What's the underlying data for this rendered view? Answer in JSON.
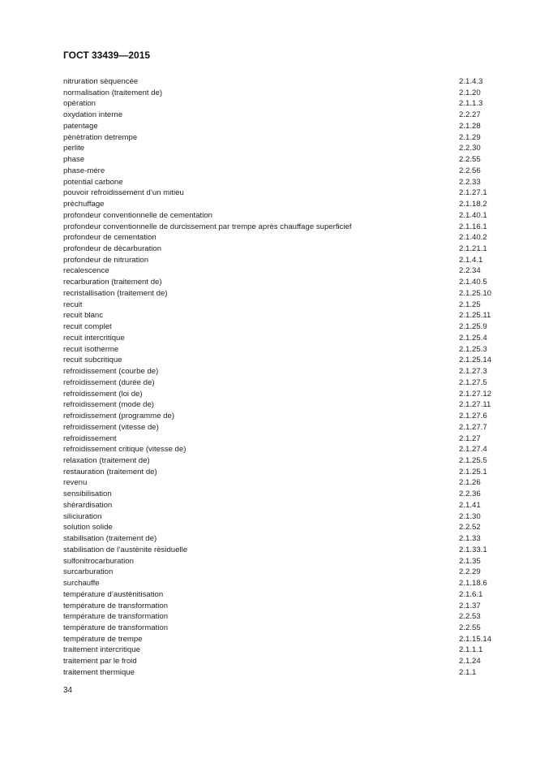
{
  "header": {
    "title": "ГОСТ 33439—2015"
  },
  "entries": [
    {
      "term": "nitruration sèquencèe",
      "ref": "2.1.4.3"
    },
    {
      "term": "normalisation (traitement de)",
      "ref": "2.1.20"
    },
    {
      "term": "opèration",
      "ref": "2.1.1.3"
    },
    {
      "term": "oxydation interne",
      "ref": "2.2.27"
    },
    {
      "term": "patentage",
      "ref": "2.1.28"
    },
    {
      "term": "pènètration detrempe",
      "ref": "2.1.29"
    },
    {
      "term": "perlite",
      "ref": "2.2.30"
    },
    {
      "term": "phase",
      "ref": "2.2.55"
    },
    {
      "term": "phase-mére",
      "ref": "2.2.56"
    },
    {
      "term": "potential carbone",
      "ref": "2.2.33"
    },
    {
      "term": "pouvoir refroidissement d’un mitieu",
      "ref": "2.1.27.1"
    },
    {
      "term": "prèchuffage",
      "ref": "2.1.18.2"
    },
    {
      "term": "profondeur conventionnelle de cementation",
      "ref": "2.1.40.1"
    },
    {
      "term": "profondeur conventionnelle de durcissement par trempe après chauffage superficief",
      "ref": "2.1.16.1"
    },
    {
      "term": "profondeur de cementation",
      "ref": "2.1.40.2"
    },
    {
      "term": "profondeur de dècarburation",
      "ref": "2.1.21.1"
    },
    {
      "term": "profondeur de nitruration",
      "ref": "2.1.4.1"
    },
    {
      "term": "recalescence",
      "ref": "2.2.34"
    },
    {
      "term": "recarburation (traitement de)",
      "ref": "2.1.40.5"
    },
    {
      "term": "recristallisation (traitement de)",
      "ref": "2.1.25.10"
    },
    {
      "term": "recuit",
      "ref": "2.1.25"
    },
    {
      "term": "recuit blanc",
      "ref": "2.1.25.11"
    },
    {
      "term": "recuit complet",
      "ref": "2.1.25.9"
    },
    {
      "term": "recuit intercritique",
      "ref": "2.1.25.4"
    },
    {
      "term": "recuit isotherme",
      "ref": "2.1.25.3"
    },
    {
      "term": "recuit subcritique",
      "ref": "2.1.25.14"
    },
    {
      "term": "refroidissement (courbe de)",
      "ref": "2.1.27.3"
    },
    {
      "term": "refroidissement (durée de)",
      "ref": "2.1.27.5"
    },
    {
      "term": "refroidissement (loi de)",
      "ref": "2.1.27.12"
    },
    {
      "term": "refroidissement (mode de)",
      "ref": "2.1.27.11"
    },
    {
      "term": "refroidissement (programme de)",
      "ref": "2.1.27.6"
    },
    {
      "term": "refroidissement (vitesse de)",
      "ref": "2.1.27.7"
    },
    {
      "term": "refroidissement",
      "ref": "2.1.27"
    },
    {
      "term": "refroidissement critique (vitesse de)",
      "ref": "2.1.27.4"
    },
    {
      "term": "relaxation (traitement de)",
      "ref": "2.1.25.5"
    },
    {
      "term": "restauration (traitement de)",
      "ref": "2.1.25.1"
    },
    {
      "term": "revenu",
      "ref": "2.1.26"
    },
    {
      "term": "sensibilisation",
      "ref": "2.2.36"
    },
    {
      "term": "shèrardisation",
      "ref": "2.1.41"
    },
    {
      "term": "siliciuration",
      "ref": "2.1.30"
    },
    {
      "term": "solution solide",
      "ref": "2.2.52"
    },
    {
      "term": "stabilisation (traitement de)",
      "ref": "2.1.33"
    },
    {
      "term": "stabilisation de l’austènite rèsiduelle",
      "ref": "2.1.33.1"
    },
    {
      "term": "sulfonitrocarburation",
      "ref": "2.1.35"
    },
    {
      "term": "surcarburation",
      "ref": "2.2.29"
    },
    {
      "term": "surchauffe",
      "ref": "2.1.18.6"
    },
    {
      "term": "température d’austènitisation",
      "ref": "2.1.6.1"
    },
    {
      "term": "température de transformation",
      "ref": "2.1.37"
    },
    {
      "term": "température de transformation",
      "ref": "2.2.53"
    },
    {
      "term": "température de transformation",
      "ref": "2.2.55"
    },
    {
      "term": "température de trempe",
      "ref": "2.1.15.14"
    },
    {
      "term": "traitement intercritique",
      "ref": "2.1.1.1"
    },
    {
      "term": "traitement par le froid",
      "ref": "2.1.24"
    },
    {
      "term": "traitement thermique",
      "ref": "2.1.1"
    }
  ],
  "footer": {
    "page_number": "34"
  }
}
